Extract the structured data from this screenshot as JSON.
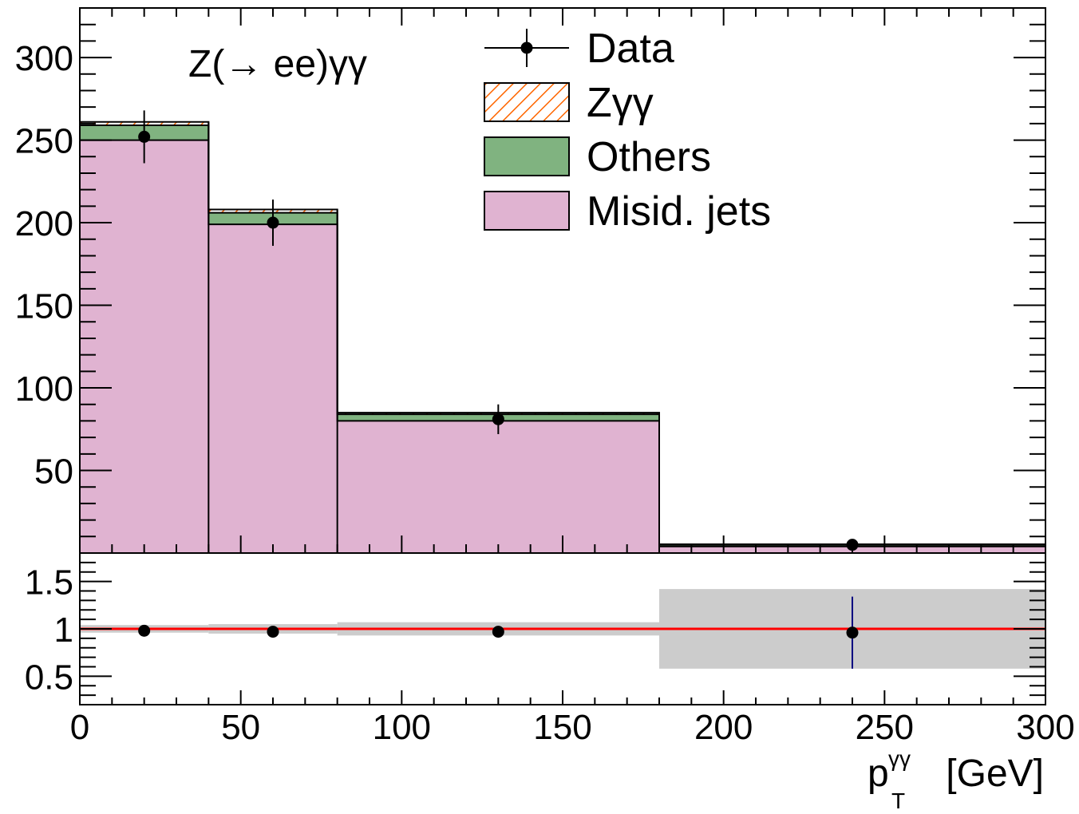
{
  "chart_data": {
    "type": "bar",
    "stacked": true,
    "annotation": "Z(→ ee)γγ",
    "xlabel": {
      "base": "p",
      "sup": "γγ",
      "sub": "T",
      "unit": "[GeV]"
    },
    "bins": [
      [
        0,
        40
      ],
      [
        40,
        80
      ],
      [
        80,
        180
      ],
      [
        180,
        300
      ]
    ],
    "xlim": [
      0,
      300
    ],
    "xticks": [
      "0",
      "50",
      "100",
      "150",
      "200",
      "250",
      "300"
    ],
    "main": {
      "ylim": [
        0,
        330
      ],
      "yticks": [
        "50",
        "100",
        "150",
        "200",
        "250",
        "300"
      ],
      "series": [
        {
          "name": "Misid. jets",
          "color": "#e0b3d1",
          "values": [
            250,
            199,
            80,
            4
          ]
        },
        {
          "name": "Others",
          "color": "#80b380",
          "values": [
            9,
            7,
            4,
            1
          ]
        },
        {
          "name": "Zγγ",
          "color": "#ff6600",
          "pattern": "hatched",
          "values": [
            2,
            2,
            1,
            0.3
          ]
        }
      ],
      "data": {
        "name": "Data",
        "x": [
          20,
          60,
          130,
          240
        ],
        "y": [
          252,
          200,
          81,
          5
        ],
        "yerr": [
          16,
          14,
          9,
          2
        ]
      }
    },
    "ratio": {
      "ylim": [
        0.2,
        1.8
      ],
      "yticks": [
        "0.5",
        "1",
        "1.5"
      ],
      "reference": 1.0,
      "reference_color": "#ff0000",
      "band_color": "#cccccc",
      "band": [
        [
          0.96,
          1.04
        ],
        [
          0.95,
          1.05
        ],
        [
          0.93,
          1.07
        ],
        [
          0.58,
          1.42
        ]
      ],
      "points": {
        "x": [
          20,
          60,
          130,
          240
        ],
        "y": [
          0.98,
          0.97,
          0.97,
          0.96
        ],
        "yerr": [
          0.0,
          0.0,
          0.06,
          0.38
        ]
      }
    },
    "legend": {
      "position": "top-right",
      "entries": [
        {
          "label": "Data",
          "style": "marker"
        },
        {
          "label": "Zγγ",
          "style": "hatched"
        },
        {
          "label": "Others",
          "style": "fill"
        },
        {
          "label": "Misid. jets",
          "style": "fill"
        }
      ]
    }
  }
}
